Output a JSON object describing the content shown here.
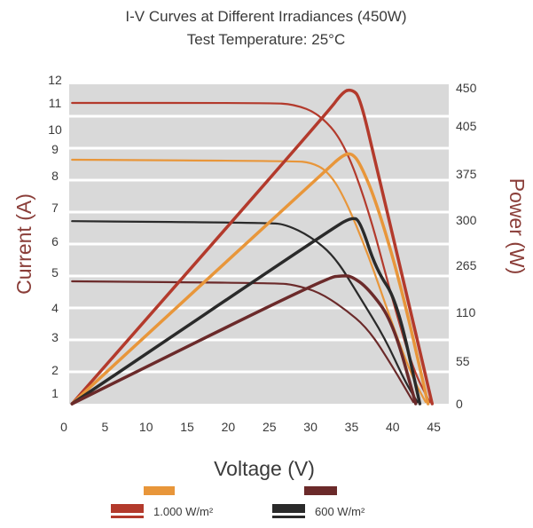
{
  "chart_data": {
    "type": "line",
    "title": "I-V Curves at Different Irradiances (450W)",
    "subtitle": "Test Temperature: 25°C",
    "xlabel": "Voltage (V)",
    "ylabel": "Current (A)",
    "y2label": "Power (W)",
    "xlim": [
      0,
      45
    ],
    "x_ticks": [
      "0",
      "5",
      "10",
      "15",
      "20",
      "25",
      "30",
      "35",
      "40",
      "45"
    ],
    "y_ticks": [
      "12",
      "11",
      "10",
      "9",
      "8",
      "7",
      "6",
      "5",
      "4",
      "3",
      "2",
      "1"
    ],
    "y2_ticks": [
      "450",
      "405",
      "375",
      "300",
      "265",
      "110",
      "55",
      "0"
    ],
    "grid": true,
    "background": "#d9d9d9",
    "legend_position": "bottom",
    "legend": [
      {
        "label": "",
        "color": "#e8963a"
      },
      {
        "label": "",
        "color": "#6b2a2a"
      },
      {
        "label": "1.000 W/m²",
        "color": "#b33a2c"
      },
      {
        "label": "600 W/m²",
        "color": "#2a2a2a"
      }
    ],
    "series": [
      {
        "name": "1.000 W/m²",
        "color": "#b33a2c",
        "axis": "current",
        "points": [
          [
            1,
            11.0
          ],
          [
            25,
            11.0
          ],
          [
            28,
            10.95
          ],
          [
            31,
            10.6
          ],
          [
            34,
            9.4
          ],
          [
            37,
            7.0
          ],
          [
            40,
            4.2
          ],
          [
            42.5,
            2.0
          ],
          [
            44.5,
            0.6
          ]
        ]
      },
      {
        "color": "#e8963a",
        "axis": "current",
        "points": [
          [
            1,
            8.6
          ],
          [
            28,
            8.55
          ],
          [
            30,
            8.5
          ],
          [
            32,
            8.2
          ],
          [
            34,
            7.4
          ],
          [
            37,
            5.6
          ],
          [
            40,
            3.4
          ],
          [
            42.5,
            1.6
          ],
          [
            44,
            0.6
          ]
        ]
      },
      {
        "name": "600 W/m²",
        "color": "#2a2a2a",
        "axis": "current",
        "points": [
          [
            1,
            6.6
          ],
          [
            25,
            6.55
          ],
          [
            27,
            6.5
          ],
          [
            30,
            6.15
          ],
          [
            33,
            5.5
          ],
          [
            36,
            4.3
          ],
          [
            39,
            3.0
          ],
          [
            41.5,
            1.5
          ],
          [
            43,
            0.6
          ]
        ]
      },
      {
        "color": "#6b2a2a",
        "axis": "current",
        "points": [
          [
            1,
            4.75
          ],
          [
            26,
            4.7
          ],
          [
            28,
            4.65
          ],
          [
            31,
            4.45
          ],
          [
            34,
            4.0
          ],
          [
            37,
            3.3
          ],
          [
            40,
            2.1
          ],
          [
            42.5,
            0.6
          ]
        ]
      },
      {
        "name": "1.000 W/m²",
        "color": "#b33a2c",
        "axis": "power",
        "points": [
          [
            1,
            0
          ],
          [
            32,
            420
          ],
          [
            34,
            446
          ],
          [
            35,
            448
          ],
          [
            36,
            440
          ],
          [
            38,
            380
          ],
          [
            41,
            250
          ],
          [
            44.8,
            0
          ]
        ]
      },
      {
        "color": "#e8963a",
        "axis": "power",
        "points": [
          [
            1,
            0
          ],
          [
            32,
            378
          ],
          [
            34,
            387
          ],
          [
            35,
            388
          ],
          [
            36,
            382
          ],
          [
            38,
            330
          ],
          [
            41,
            200
          ],
          [
            44.3,
            0
          ]
        ]
      },
      {
        "name": "600 W/m²",
        "color": "#2a2a2a",
        "axis": "power",
        "points": [
          [
            1,
            0
          ],
          [
            33,
            295
          ],
          [
            35,
            304
          ],
          [
            36,
            300
          ],
          [
            38,
            250
          ],
          [
            40.5,
            150
          ],
          [
            43.3,
            0
          ]
        ]
      },
      {
        "color": "#6b2a2a",
        "axis": "power",
        "points": [
          [
            1,
            0
          ],
          [
            32,
            225
          ],
          [
            34,
            231
          ],
          [
            35,
            229
          ],
          [
            37,
            190
          ],
          [
            40,
            100
          ],
          [
            42.8,
            0
          ]
        ]
      }
    ]
  }
}
